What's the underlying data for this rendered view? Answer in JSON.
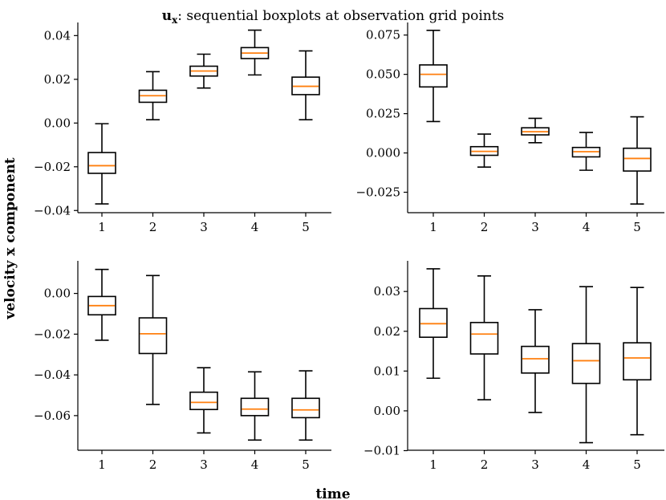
{
  "figure": {
    "title_bold": "u",
    "title_sub": "x",
    "title_rest": ": sequential boxplots at observation grid points",
    "xlabel": "time",
    "ylabel": "velocity x component",
    "median_color": "#ff7f0e",
    "box_color": "#000000"
  },
  "chart_data": [
    {
      "type": "box",
      "categories": [
        "1",
        "2",
        "3",
        "4",
        "5"
      ],
      "ylim": [
        -0.041,
        0.046
      ],
      "yticks": [
        -0.04,
        -0.02,
        0.0,
        0.02,
        0.04
      ],
      "ytick_labels": [
        "−0.04",
        "−0.02",
        "0.00",
        "0.02",
        "0.04"
      ],
      "boxes": [
        {
          "whislo": -0.037,
          "q1": -0.023,
          "med": -0.0195,
          "q3": -0.0135,
          "whishi": -0.0003
        },
        {
          "whislo": 0.0015,
          "q1": 0.0095,
          "med": 0.0125,
          "q3": 0.015,
          "whishi": 0.0235
        },
        {
          "whislo": 0.016,
          "q1": 0.0215,
          "med": 0.0238,
          "q3": 0.026,
          "whishi": 0.0315
        },
        {
          "whislo": 0.022,
          "q1": 0.0295,
          "med": 0.032,
          "q3": 0.0345,
          "whishi": 0.0425
        },
        {
          "whislo": 0.0015,
          "q1": 0.013,
          "med": 0.0168,
          "q3": 0.021,
          "whishi": 0.033
        }
      ]
    },
    {
      "type": "box",
      "categories": [
        "1",
        "2",
        "3",
        "4",
        "5"
      ],
      "ylim": [
        -0.038,
        0.083
      ],
      "yticks": [
        -0.025,
        0.0,
        0.025,
        0.05,
        0.075
      ],
      "ytick_labels": [
        "−0.025",
        "0.000",
        "0.025",
        "0.050",
        "0.075"
      ],
      "boxes": [
        {
          "whislo": 0.02,
          "q1": 0.042,
          "med": 0.05,
          "q3": 0.056,
          "whishi": 0.078
        },
        {
          "whislo": -0.009,
          "q1": -0.0015,
          "med": 0.001,
          "q3": 0.004,
          "whishi": 0.012
        },
        {
          "whislo": 0.0065,
          "q1": 0.0115,
          "med": 0.0135,
          "q3": 0.016,
          "whishi": 0.022
        },
        {
          "whislo": -0.011,
          "q1": -0.0025,
          "med": 0.0008,
          "q3": 0.0035,
          "whishi": 0.013
        },
        {
          "whislo": -0.0325,
          "q1": -0.0115,
          "med": -0.0035,
          "q3": 0.003,
          "whishi": 0.023
        }
      ]
    },
    {
      "type": "box",
      "categories": [
        "1",
        "2",
        "3",
        "4",
        "5"
      ],
      "ylim": [
        -0.077,
        0.016
      ],
      "yticks": [
        -0.06,
        -0.04,
        -0.02,
        0.0
      ],
      "ytick_labels": [
        "−0.06",
        "−0.04",
        "−0.02",
        "0.00"
      ],
      "boxes": [
        {
          "whislo": -0.023,
          "q1": -0.0105,
          "med": -0.006,
          "q3": -0.0015,
          "whishi": 0.0118
        },
        {
          "whislo": -0.0545,
          "q1": -0.0295,
          "med": -0.0198,
          "q3": -0.012,
          "whishi": 0.0088
        },
        {
          "whislo": -0.0685,
          "q1": -0.057,
          "med": -0.0535,
          "q3": -0.0485,
          "whishi": -0.0365
        },
        {
          "whislo": -0.072,
          "q1": -0.06,
          "med": -0.0568,
          "q3": -0.0515,
          "whishi": -0.0385
        },
        {
          "whislo": -0.072,
          "q1": -0.061,
          "med": -0.0572,
          "q3": -0.0515,
          "whishi": -0.038
        }
      ]
    },
    {
      "type": "box",
      "categories": [
        "1",
        "2",
        "3",
        "4",
        "5"
      ],
      "ylim": [
        -0.0099,
        0.0377
      ],
      "yticks": [
        -0.01,
        0.0,
        0.01,
        0.02,
        0.03
      ],
      "ytick_labels": [
        "−0.01",
        "0.00",
        "0.01",
        "0.02",
        "0.03"
      ],
      "boxes": [
        {
          "whislo": 0.0082,
          "q1": 0.0185,
          "med": 0.0219,
          "q3": 0.0257,
          "whishi": 0.0357
        },
        {
          "whislo": 0.0028,
          "q1": 0.0143,
          "med": 0.0193,
          "q3": 0.0222,
          "whishi": 0.0339
        },
        {
          "whislo": -0.0004,
          "q1": 0.0095,
          "med": 0.0131,
          "q3": 0.0162,
          "whishi": 0.0254
        },
        {
          "whislo": -0.008,
          "q1": 0.0069,
          "med": 0.0126,
          "q3": 0.0169,
          "whishi": 0.0312
        },
        {
          "whislo": -0.006,
          "q1": 0.0078,
          "med": 0.0133,
          "q3": 0.0171,
          "whishi": 0.031
        }
      ]
    }
  ]
}
